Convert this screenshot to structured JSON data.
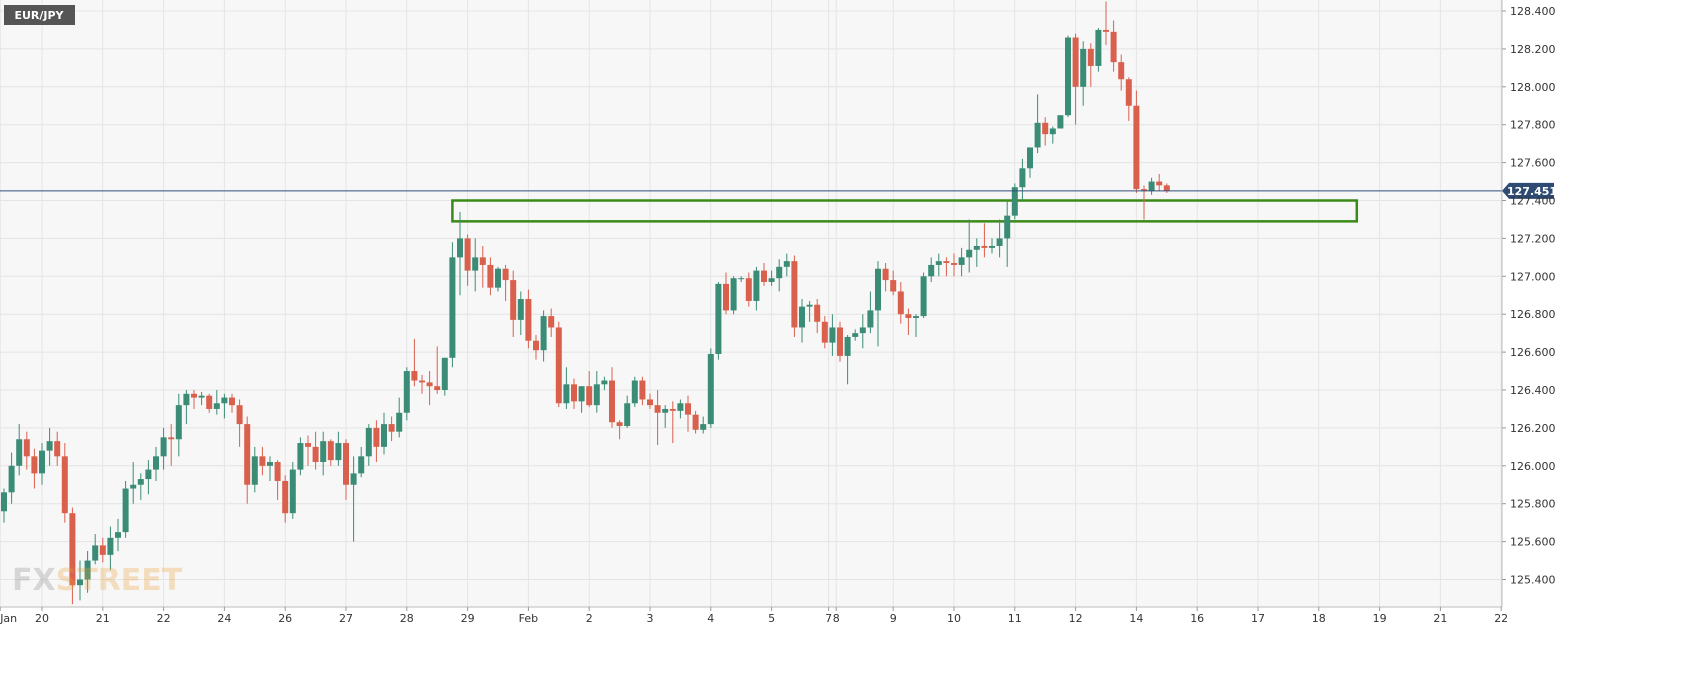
{
  "symbol": "EUR/JPY",
  "logo": "FXSTREET",
  "colors": {
    "up": "#3b8c76",
    "down": "#d9604c",
    "price_line": "#2f4f7f",
    "price_badge": "#2d4b73",
    "zone": "#3a8a17",
    "grid": "#e4e4e4",
    "plot_bg": "#f7f7f7",
    "symbol_badge": "#555555"
  },
  "chart_data": {
    "type": "candlestick",
    "title": "",
    "xlabel": "",
    "ylabel": "",
    "ylim": [
      125.3,
      128.45
    ],
    "y_ticks": [
      "128.400",
      "128.200",
      "128.000",
      "127.800",
      "127.600",
      "127.400",
      "127.200",
      "127.000",
      "126.800",
      "126.600",
      "126.400",
      "126.200",
      "126.000",
      "125.800",
      "125.600",
      "125.400"
    ],
    "x_ticks": [
      {
        "label": "Jan",
        "i": -0.5
      },
      {
        "label": "20",
        "i": 5
      },
      {
        "label": "21",
        "i": 13
      },
      {
        "label": "22",
        "i": 21
      },
      {
        "label": "24",
        "i": 29
      },
      {
        "label": "26",
        "i": 37
      },
      {
        "label": "27",
        "i": 45
      },
      {
        "label": "28",
        "i": 53
      },
      {
        "label": "29",
        "i": 61
      },
      {
        "label": "Feb",
        "i": 69
      },
      {
        "label": "2",
        "i": 77
      },
      {
        "label": "3",
        "i": 85
      },
      {
        "label": "4",
        "i": 93
      },
      {
        "label": "5",
        "i": 101
      },
      {
        "label": "7",
        "i": 108.5
      },
      {
        "label": "8",
        "i": 109.5
      },
      {
        "label": "9",
        "i": 117
      },
      {
        "label": "10",
        "i": 125
      },
      {
        "label": "11",
        "i": 133
      },
      {
        "label": "12",
        "i": 141
      },
      {
        "label": "14",
        "i": 149
      },
      {
        "label": "16",
        "i": 157
      },
      {
        "label": "17",
        "i": 165
      },
      {
        "label": "18",
        "i": 173
      },
      {
        "label": "19",
        "i": 181
      },
      {
        "label": "21",
        "i": 189
      },
      {
        "label": "22",
        "i": 197
      }
    ],
    "last_price": 127.451,
    "last_price_label": "127.451",
    "resistance_zone": {
      "low": 127.29,
      "high": 127.4,
      "from_i": 59,
      "to_i": 178
    },
    "ohlc": [
      [
        125.76,
        125.88,
        125.7,
        125.86
      ],
      [
        125.86,
        126.07,
        125.8,
        126.0
      ],
      [
        126.0,
        126.22,
        125.95,
        126.14
      ],
      [
        126.14,
        126.18,
        125.98,
        126.05
      ],
      [
        126.05,
        126.09,
        125.88,
        125.96
      ],
      [
        125.96,
        126.12,
        125.9,
        126.08
      ],
      [
        126.08,
        126.2,
        126.0,
        126.13
      ],
      [
        126.13,
        126.18,
        126.0,
        126.05
      ],
      [
        126.05,
        126.12,
        125.7,
        125.75
      ],
      [
        125.75,
        125.78,
        125.27,
        125.37
      ],
      [
        125.37,
        125.5,
        125.29,
        125.4
      ],
      [
        125.4,
        125.55,
        125.33,
        125.5
      ],
      [
        125.5,
        125.64,
        125.48,
        125.58
      ],
      [
        125.58,
        125.62,
        125.49,
        125.53
      ],
      [
        125.53,
        125.68,
        125.45,
        125.62
      ],
      [
        125.62,
        125.72,
        125.55,
        125.65
      ],
      [
        125.65,
        125.92,
        125.62,
        125.88
      ],
      [
        125.88,
        126.02,
        125.8,
        125.9
      ],
      [
        125.9,
        125.96,
        125.82,
        125.93
      ],
      [
        125.93,
        126.03,
        125.85,
        125.98
      ],
      [
        125.98,
        126.1,
        125.92,
        126.05
      ],
      [
        126.05,
        126.2,
        125.98,
        126.15
      ],
      [
        126.15,
        126.22,
        126.0,
        126.14
      ],
      [
        126.14,
        126.38,
        126.05,
        126.32
      ],
      [
        126.32,
        126.4,
        126.22,
        126.38
      ],
      [
        126.38,
        126.4,
        126.3,
        126.36
      ],
      [
        126.36,
        126.39,
        126.32,
        126.37
      ],
      [
        126.37,
        126.38,
        126.28,
        126.3
      ],
      [
        126.3,
        126.4,
        126.27,
        126.33
      ],
      [
        126.33,
        126.38,
        126.25,
        126.36
      ],
      [
        126.36,
        126.38,
        126.28,
        126.32
      ],
      [
        126.32,
        126.35,
        126.1,
        126.22
      ],
      [
        126.22,
        126.26,
        125.8,
        125.9
      ],
      [
        125.9,
        126.1,
        125.86,
        126.05
      ],
      [
        126.05,
        126.1,
        125.95,
        126.0
      ],
      [
        126.0,
        126.05,
        125.92,
        126.02
      ],
      [
        126.02,
        126.03,
        125.82,
        125.92
      ],
      [
        125.92,
        125.95,
        125.7,
        125.75
      ],
      [
        125.75,
        126.02,
        125.72,
        125.98
      ],
      [
        125.98,
        126.15,
        125.95,
        126.12
      ],
      [
        126.12,
        126.16,
        126.0,
        126.1
      ],
      [
        126.1,
        126.18,
        125.98,
        126.02
      ],
      [
        126.02,
        126.18,
        125.95,
        126.13
      ],
      [
        126.13,
        126.14,
        126.0,
        126.03
      ],
      [
        126.03,
        126.18,
        126.0,
        126.12
      ],
      [
        126.12,
        126.14,
        125.82,
        125.9
      ],
      [
        125.9,
        126.05,
        125.6,
        125.96
      ],
      [
        125.96,
        126.1,
        125.94,
        126.05
      ],
      [
        126.05,
        126.22,
        126.0,
        126.2
      ],
      [
        126.2,
        126.24,
        126.02,
        126.1
      ],
      [
        126.1,
        126.28,
        126.06,
        126.22
      ],
      [
        126.22,
        126.26,
        126.13,
        126.18
      ],
      [
        126.18,
        126.36,
        126.15,
        126.28
      ],
      [
        126.28,
        126.52,
        126.24,
        126.5
      ],
      [
        126.5,
        126.67,
        126.42,
        126.45
      ],
      [
        126.45,
        126.48,
        126.38,
        126.44
      ],
      [
        126.44,
        126.5,
        126.32,
        126.42
      ],
      [
        126.42,
        126.63,
        126.38,
        126.4
      ],
      [
        126.4,
        126.57,
        126.37,
        126.57
      ],
      [
        126.57,
        127.18,
        126.52,
        127.1
      ],
      [
        127.1,
        127.34,
        126.9,
        127.2
      ],
      [
        127.2,
        127.22,
        126.95,
        127.03
      ],
      [
        127.03,
        127.2,
        126.92,
        127.1
      ],
      [
        127.1,
        127.16,
        126.94,
        127.06
      ],
      [
        127.06,
        127.1,
        126.9,
        126.94
      ],
      [
        126.94,
        127.05,
        126.92,
        127.04
      ],
      [
        127.04,
        127.06,
        126.87,
        126.98
      ],
      [
        126.98,
        127.03,
        126.68,
        126.77
      ],
      [
        126.77,
        126.92,
        126.69,
        126.88
      ],
      [
        126.88,
        126.93,
        126.62,
        126.66
      ],
      [
        126.66,
        126.69,
        126.56,
        126.61
      ],
      [
        126.61,
        126.82,
        126.55,
        126.79
      ],
      [
        126.79,
        126.83,
        126.68,
        126.73
      ],
      [
        126.73,
        126.76,
        126.31,
        126.33
      ],
      [
        126.33,
        126.52,
        126.3,
        126.43
      ],
      [
        126.43,
        126.46,
        126.3,
        126.34
      ],
      [
        126.34,
        126.42,
        126.28,
        126.42
      ],
      [
        126.42,
        126.5,
        126.31,
        126.32
      ],
      [
        126.32,
        126.5,
        126.28,
        126.43
      ],
      [
        126.43,
        126.47,
        126.4,
        126.45
      ],
      [
        126.45,
        126.52,
        126.2,
        126.23
      ],
      [
        126.23,
        126.24,
        126.14,
        126.21
      ],
      [
        126.21,
        126.37,
        126.2,
        126.33
      ],
      [
        126.33,
        126.47,
        126.31,
        126.45
      ],
      [
        126.45,
        126.47,
        126.32,
        126.35
      ],
      [
        126.35,
        126.38,
        126.3,
        126.32
      ],
      [
        126.32,
        126.4,
        126.11,
        126.28
      ],
      [
        126.28,
        126.32,
        126.2,
        126.3
      ],
      [
        126.3,
        126.34,
        126.12,
        126.29
      ],
      [
        126.29,
        126.35,
        126.25,
        126.33
      ],
      [
        126.33,
        126.37,
        126.18,
        126.27
      ],
      [
        126.27,
        126.29,
        126.17,
        126.19
      ],
      [
        126.19,
        126.26,
        126.17,
        126.22
      ],
      [
        126.22,
        126.62,
        126.2,
        126.59
      ],
      [
        126.59,
        126.97,
        126.56,
        126.96
      ],
      [
        126.96,
        127.02,
        126.8,
        126.82
      ],
      [
        126.82,
        127.0,
        126.8,
        126.99
      ],
      [
        126.99,
        127.0,
        126.97,
        126.99
      ],
      [
        126.99,
        127.02,
        126.84,
        126.87
      ],
      [
        126.87,
        127.05,
        126.82,
        127.03
      ],
      [
        127.03,
        127.07,
        126.95,
        126.97
      ],
      [
        126.97,
        127.03,
        126.95,
        126.99
      ],
      [
        126.99,
        127.09,
        126.92,
        127.05
      ],
      [
        127.05,
        127.12,
        127.0,
        127.08
      ],
      [
        127.08,
        127.11,
        126.68,
        126.73
      ],
      [
        126.73,
        126.88,
        126.65,
        126.84
      ],
      [
        126.84,
        126.87,
        126.76,
        126.85
      ],
      [
        126.85,
        126.88,
        126.7,
        126.76
      ],
      [
        126.76,
        126.79,
        126.62,
        126.65
      ],
      [
        126.65,
        126.8,
        126.58,
        126.73
      ],
      [
        126.73,
        126.76,
        126.55,
        126.58
      ],
      [
        126.58,
        126.69,
        126.43,
        126.68
      ],
      [
        126.68,
        126.72,
        126.66,
        126.7
      ],
      [
        126.7,
        126.8,
        126.62,
        126.73
      ],
      [
        126.73,
        126.92,
        126.7,
        126.82
      ],
      [
        126.82,
        127.08,
        126.63,
        127.04
      ],
      [
        127.04,
        127.07,
        126.92,
        126.98
      ],
      [
        126.98,
        127.03,
        126.9,
        126.92
      ],
      [
        126.92,
        126.97,
        126.75,
        126.8
      ],
      [
        126.8,
        126.83,
        126.69,
        126.78
      ],
      [
        126.78,
        126.8,
        126.68,
        126.79
      ],
      [
        126.79,
        127.02,
        126.78,
        127.0
      ],
      [
        127.0,
        127.1,
        126.97,
        127.06
      ],
      [
        127.06,
        127.12,
        127.0,
        127.08
      ],
      [
        127.08,
        127.1,
        127.0,
        127.07
      ],
      [
        127.07,
        127.12,
        127.0,
        127.06
      ],
      [
        127.06,
        127.15,
        127.0,
        127.1
      ],
      [
        127.1,
        127.3,
        127.02,
        127.14
      ],
      [
        127.14,
        127.2,
        127.05,
        127.16
      ],
      [
        127.16,
        127.28,
        127.1,
        127.15
      ],
      [
        127.15,
        127.2,
        127.12,
        127.16
      ],
      [
        127.16,
        127.3,
        127.1,
        127.2
      ],
      [
        127.2,
        127.4,
        127.05,
        127.32
      ],
      [
        127.32,
        127.49,
        127.3,
        127.47
      ],
      [
        127.47,
        127.62,
        127.4,
        127.57
      ],
      [
        127.57,
        127.68,
        127.52,
        127.68
      ],
      [
        127.68,
        127.96,
        127.65,
        127.81
      ],
      [
        127.81,
        127.84,
        127.69,
        127.75
      ],
      [
        127.75,
        127.79,
        127.7,
        127.78
      ],
      [
        127.78,
        127.85,
        127.78,
        127.85
      ],
      [
        127.85,
        128.27,
        127.84,
        128.26
      ],
      [
        128.26,
        128.28,
        127.8,
        128.0
      ],
      [
        128.0,
        128.24,
        127.9,
        128.2
      ],
      [
        128.2,
        128.23,
        128.0,
        128.11
      ],
      [
        128.11,
        128.31,
        128.08,
        128.3
      ],
      [
        128.3,
        128.45,
        128.22,
        128.29
      ],
      [
        128.29,
        128.35,
        128.08,
        128.13
      ],
      [
        128.13,
        128.17,
        127.98,
        128.04
      ],
      [
        128.04,
        128.05,
        127.82,
        127.9
      ],
      [
        127.9,
        127.98,
        127.44,
        127.46
      ],
      [
        127.46,
        127.48,
        127.3,
        127.45
      ],
      [
        127.45,
        127.52,
        127.43,
        127.5
      ],
      [
        127.5,
        127.54,
        127.45,
        127.48
      ],
      [
        127.48,
        127.49,
        127.44,
        127.45
      ]
    ]
  }
}
